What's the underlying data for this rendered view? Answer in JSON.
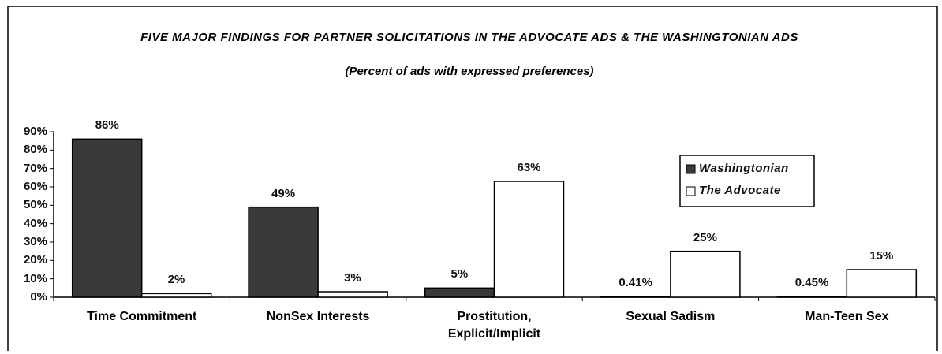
{
  "chart_data": {
    "type": "bar",
    "title": "FIVE MAJOR FINDINGS FOR PARTNER SOLICITATIONS IN THE ADVOCATE ADS & THE WASHINGTONIAN ADS",
    "subtitle": "(Percent of ads with expressed preferences)",
    "categories": [
      "Time Commitment",
      "NonSex Interests",
      "Prostitution, Explicit/Implicit",
      "Sexual Sadism",
      "Man-Teen Sex"
    ],
    "series": [
      {
        "name": "Washingtonian",
        "color": "#3a3a3a",
        "values": [
          86,
          49,
          5,
          0.41,
          0.45
        ],
        "value_labels": [
          "86%",
          "49%",
          "5%",
          "0.41%",
          "0.45%"
        ]
      },
      {
        "name": "The Advocate",
        "color": "#ffffff",
        "values": [
          2,
          3,
          63,
          25,
          15
        ],
        "value_labels": [
          "2%",
          "3%",
          "63%",
          "25%",
          "15%"
        ]
      }
    ],
    "ylim": [
      0,
      90
    ],
    "yticks": [
      {
        "value": 0,
        "label": "0%"
      },
      {
        "value": 10,
        "label": "10%"
      },
      {
        "value": 20,
        "label": "20%"
      },
      {
        "value": 30,
        "label": "30%"
      },
      {
        "value": 40,
        "label": "40%"
      },
      {
        "value": 50,
        "label": "50%"
      },
      {
        "value": 60,
        "label": "60%"
      },
      {
        "value": 70,
        "label": "70%"
      },
      {
        "value": 80,
        "label": "80%"
      },
      {
        "value": 90,
        "label": "90%"
      }
    ],
    "legend": "right"
  }
}
